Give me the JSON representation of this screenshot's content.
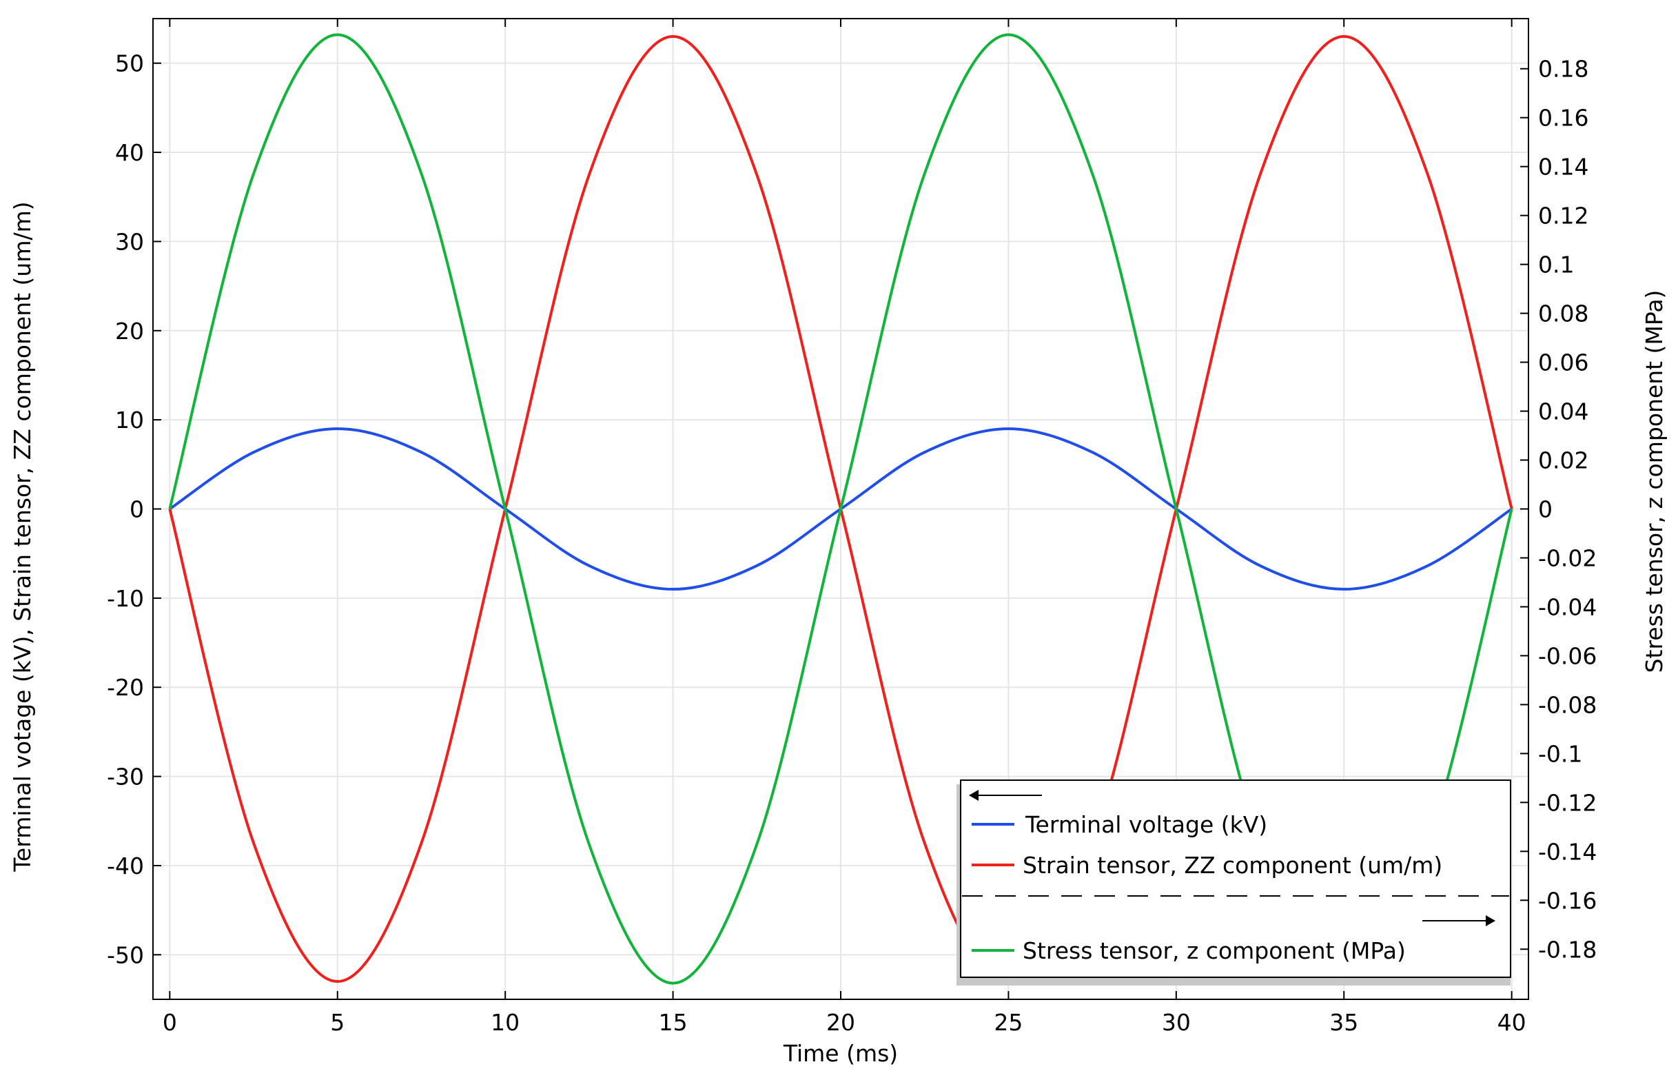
{
  "chart_data": {
    "type": "line",
    "xlabel": "Time (ms)",
    "ylabel_left": "Terminal votage (kV), Strain tensor, ZZ component (um/m)",
    "ylabel_right": "Stress tensor, z component (MPa)",
    "xlim": [
      -0.5,
      40.5
    ],
    "ylim_left": [
      -55,
      55
    ],
    "ylim_right": [
      -0.2005,
      0.2005
    ],
    "xticks": [
      0,
      5,
      10,
      15,
      20,
      25,
      30,
      35,
      40
    ],
    "xtick_labels": [
      "0",
      "5",
      "10",
      "15",
      "20",
      "25",
      "30",
      "35",
      "40"
    ],
    "yticks_left": [
      50,
      40,
      30,
      20,
      10,
      0,
      -10,
      -20,
      -30,
      -40,
      -50
    ],
    "ytick_labels_left": [
      "50",
      "40",
      "30",
      "20",
      "10",
      "0",
      "-10",
      "-20",
      "-30",
      "-40",
      "-50"
    ],
    "yticks_right": [
      0.18,
      0.16,
      0.14,
      0.12,
      0.1,
      0.08,
      0.06,
      0.04,
      0.02,
      0,
      -0.02,
      -0.04,
      -0.06,
      -0.08,
      -0.1,
      -0.12,
      -0.14,
      -0.16,
      -0.18
    ],
    "ytick_labels_right": [
      "0.18",
      "0.16",
      "0.14",
      "0.12",
      "0.1",
      "0.08",
      "0.06",
      "0.04",
      "0.02",
      "0",
      "-0.02",
      "-0.04",
      "-0.06",
      "-0.08",
      "-0.1",
      "-0.12",
      "-0.14",
      "-0.16",
      "-0.18"
    ],
    "grid": true,
    "legend_placement": "bottom-right",
    "series": [
      {
        "name": "Terminal voltage (kV)",
        "axis": "left",
        "color": "#1f4fe8",
        "x": [
          0,
          2.5,
          5,
          7.5,
          10,
          12.5,
          15,
          17.5,
          20,
          22.5,
          25,
          27.5,
          30,
          32.5,
          35,
          37.5,
          40
        ],
        "y": [
          0,
          6.36,
          9,
          6.36,
          0,
          -6.36,
          -9,
          -6.36,
          0,
          6.36,
          9,
          6.36,
          0,
          -6.36,
          -9,
          -6.36,
          0
        ]
      },
      {
        "name": "Strain tensor, ZZ component (um/m)",
        "axis": "left",
        "color": "#f0201c",
        "x": [
          0,
          2.5,
          5,
          7.5,
          10,
          12.5,
          15,
          17.5,
          20,
          22.5,
          25,
          27.5,
          30,
          32.5,
          35,
          37.5,
          40
        ],
        "y": [
          0,
          -37.48,
          -53,
          -37.48,
          0,
          37.48,
          53,
          37.48,
          0,
          -37.48,
          -53,
          -37.48,
          0,
          37.48,
          53,
          37.48,
          0
        ]
      },
      {
        "name": "Stress tensor, z component (MPa)",
        "axis": "right",
        "color": "#12b43c",
        "x": [
          0,
          2.5,
          5,
          7.5,
          10,
          12.5,
          15,
          17.5,
          20,
          22.5,
          25,
          27.5,
          30,
          32.5,
          35,
          37.5,
          40
        ],
        "y": [
          0,
          0.1371,
          0.1939,
          0.1371,
          0,
          -0.1371,
          -0.1939,
          -0.1371,
          0,
          0.1371,
          0.1939,
          0.1371,
          0,
          -0.1371,
          -0.1939,
          -0.1371,
          0
        ]
      }
    ]
  }
}
